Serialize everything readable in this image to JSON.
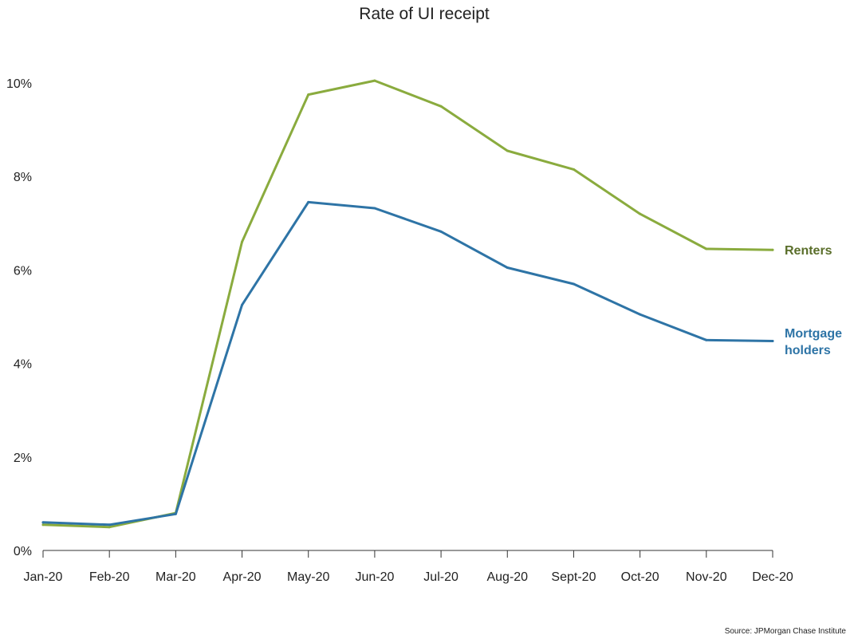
{
  "chart_data": {
    "type": "line",
    "title": "Rate of UI receipt",
    "xlabel": "",
    "ylabel": "",
    "categories": [
      "Jan-20",
      "Feb-20",
      "Mar-20",
      "Apr-20",
      "May-20",
      "Jun-20",
      "Jul-20",
      "Aug-20",
      "Sept-20",
      "Oct-20",
      "Nov-20",
      "Dec-20"
    ],
    "ylim": [
      0,
      10
    ],
    "yticks": [
      {
        "value": 0,
        "label": "0%"
      },
      {
        "value": 2,
        "label": "2%"
      },
      {
        "value": 4,
        "label": "4%"
      },
      {
        "value": 6,
        "label": "6%"
      },
      {
        "value": 8,
        "label": "8%"
      },
      {
        "value": 10,
        "label": "10%"
      }
    ],
    "grid": false,
    "series": [
      {
        "name": "Renters",
        "label_lines": [
          "Renters"
        ],
        "color": "#8aab3e",
        "label_color": "#5a6e2a",
        "values": [
          0.55,
          0.5,
          0.8,
          6.6,
          9.75,
          10.05,
          9.5,
          8.55,
          8.15,
          7.2,
          6.45,
          6.43
        ]
      },
      {
        "name": "Mortgage holders",
        "label_lines": [
          "Mortgage",
          "holders"
        ],
        "color": "#2e74a6",
        "label_color": "#2e74a6",
        "values": [
          0.6,
          0.55,
          0.78,
          5.25,
          7.45,
          7.32,
          6.82,
          6.05,
          5.7,
          5.05,
          4.5,
          4.48
        ]
      }
    ]
  },
  "source": "Source: JPMorgan Chase Institute"
}
